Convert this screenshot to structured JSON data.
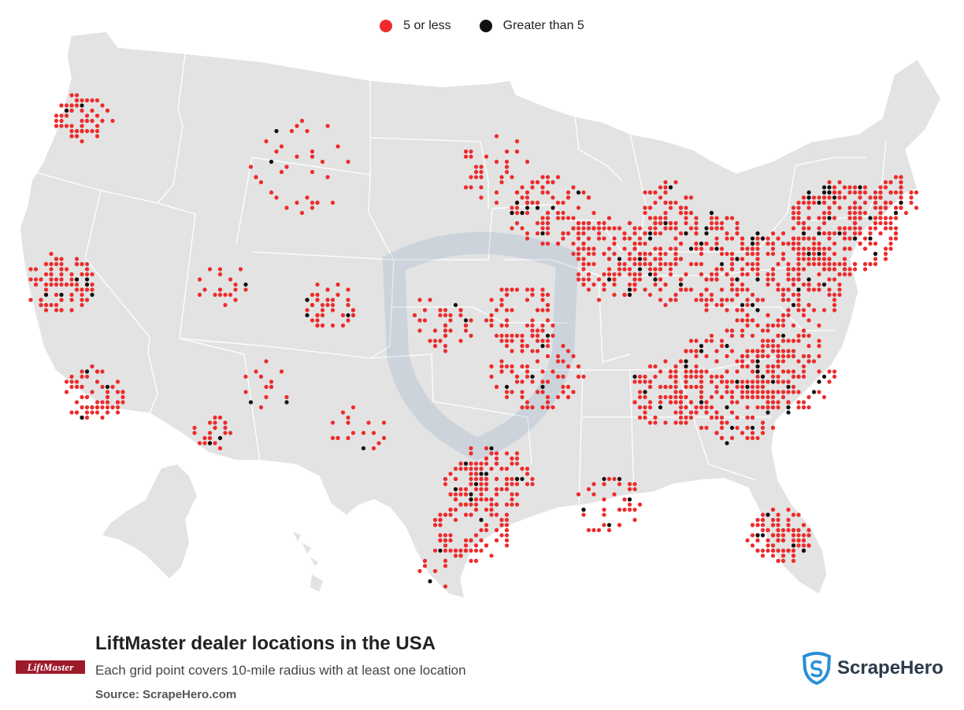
{
  "legend": {
    "items": [
      {
        "label": "5 or less",
        "color": "#ee2b2b"
      },
      {
        "label": "Greater than 5",
        "color": "#111111"
      }
    ]
  },
  "footer": {
    "title": "LiftMaster dealer locations in the USA",
    "subtitle": "Each grid point covers 10-mile radius with at least one location",
    "source": "Source: ScrapeHero.com"
  },
  "brand": {
    "logo_text": "LiftMaster"
  },
  "scrapehero": {
    "logo_text": "ScrapeHero",
    "color": "#2a8fd6"
  },
  "map": {
    "land_color": "#e3e3e3",
    "border_color": "#ffffff",
    "low_color": "#ee2b2b",
    "high_color": "#111111"
  }
}
